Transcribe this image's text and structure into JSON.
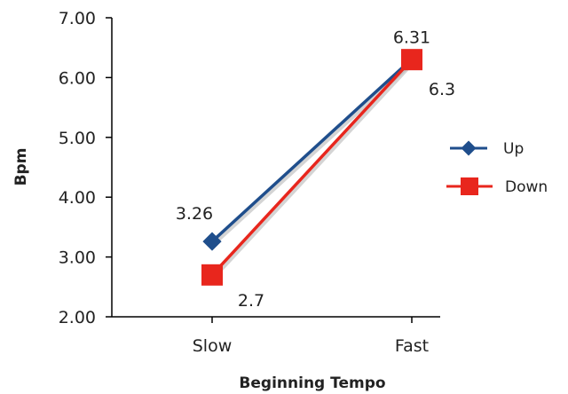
{
  "chart_data": {
    "type": "line",
    "title": "",
    "xlabel": "Beginning Tempo",
    "ylabel": "Bpm",
    "categories": [
      "Slow",
      "Fast"
    ],
    "ylim": [
      2.0,
      7.0
    ],
    "yticks": [
      "2.00",
      "3.00",
      "4.00",
      "5.00",
      "6.00",
      "7.00"
    ],
    "grid": false,
    "legend_position": "right",
    "series": [
      {
        "name": "Up",
        "values": [
          3.26,
          6.31
        ],
        "labels": [
          "3.26",
          "6.31"
        ],
        "color": "#1f4e8c",
        "marker": "diamond"
      },
      {
        "name": "Down",
        "values": [
          2.7,
          6.3
        ],
        "labels": [
          "2.7",
          "6.3"
        ],
        "color": "#e8261d",
        "marker": "square"
      }
    ]
  }
}
